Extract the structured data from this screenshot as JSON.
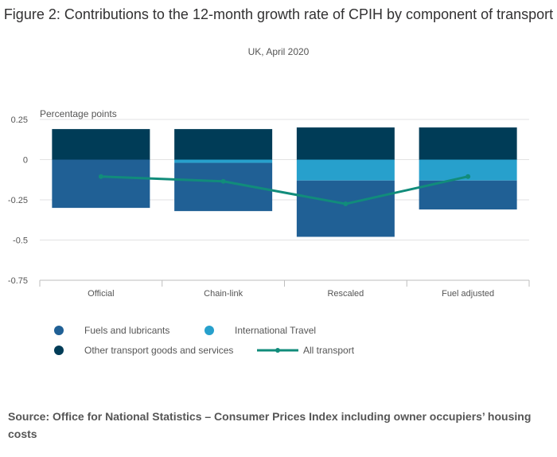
{
  "title": "Figure 2: Contributions to the 12-month growth rate of CPIH by component of transport",
  "subtitle": "UK, April 2020",
  "source": "Source: Office for National Statistics – Consumer Prices Index including owner occupiers’ housing costs",
  "colors": {
    "fuels": "#206095",
    "international_travel": "#27a0cc",
    "other_transport": "#003c57",
    "all_transport": "#118c7b",
    "grid": "#e2e2e3",
    "axis": "#bebebe"
  },
  "chart_data": {
    "type": "bar",
    "stacked": true,
    "ylabel": "Percentage points",
    "ylim": [
      -0.75,
      0.25
    ],
    "yticks": [
      0.25,
      0,
      -0.25,
      -0.5,
      -0.75
    ],
    "ytick_labels": [
      "0.25",
      "0",
      "-0.25",
      "-0.5",
      "-0.75"
    ],
    "grid": true,
    "legend_position": "bottom",
    "categories": [
      "Official",
      "Chain-link",
      "Rescaled",
      "Fuel adjusted"
    ],
    "series": [
      {
        "name": "Fuels and lubricants",
        "kind": "bar",
        "values": [
          -0.3,
          -0.3,
          -0.35,
          -0.18
        ]
      },
      {
        "name": "International Travel",
        "kind": "bar",
        "values": [
          0,
          -0.02,
          -0.13,
          -0.13
        ]
      },
      {
        "name": "Other transport goods and services",
        "kind": "bar",
        "values": [
          0.19,
          0.19,
          0.2,
          0.2
        ]
      },
      {
        "name": "All transport",
        "kind": "line",
        "values": [
          -0.105,
          -0.135,
          -0.275,
          -0.105
        ]
      }
    ]
  }
}
